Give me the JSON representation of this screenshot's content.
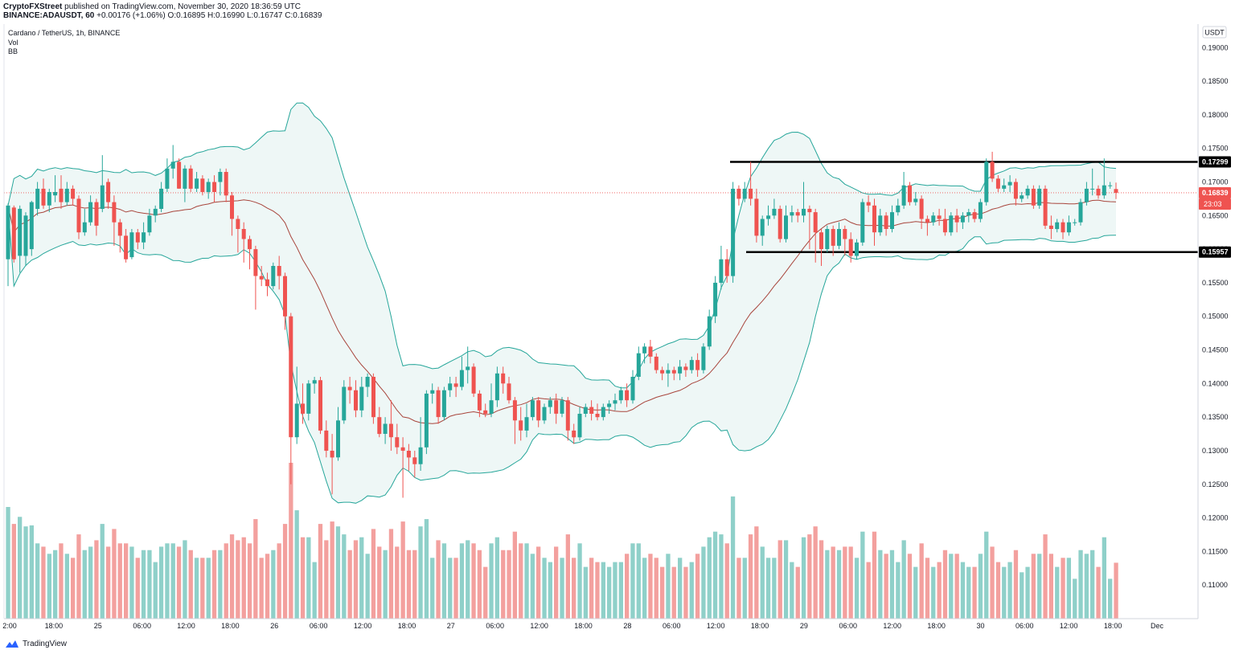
{
  "header": {
    "publisher": "CryptoFXStreet",
    "published_text": "published on TradingView.com, November 30, 2020 18:36:59 UTC",
    "symbol_line": "BINANCE:ADAUSDT, 60",
    "open": "O:0.16895",
    "high": "H:0.16990",
    "low": "L:0.16747",
    "close": "C:0.16839",
    "change": "+0.00176 (+1.06%)"
  },
  "legend": {
    "title": "Cardano / TetherUS, 1h, BINANCE",
    "vol": "Vol",
    "bb": "BB"
  },
  "footer": {
    "brand": "TradingView"
  },
  "colors": {
    "up": "#26a69a",
    "down": "#ef5350",
    "bb_band": "#26a69a",
    "bb_fill": "#eef7f6",
    "basis": "#a8453c",
    "level": "#000000",
    "vol_up": "#8fd0c9",
    "vol_down": "#f3a09e"
  },
  "chart_data": {
    "type": "candlestick",
    "currency": "USDT",
    "ylim": [
      0.105,
      0.1935
    ],
    "y_ticks": [
      "0.19000",
      "0.18500",
      "0.18000",
      "0.17500",
      "0.17000",
      "0.16500",
      "0.16000",
      "0.15500",
      "0.15000",
      "0.14500",
      "0.14000",
      "0.13500",
      "0.13000",
      "0.12500",
      "0.12000",
      "0.11500",
      "0.11000"
    ],
    "x_ticks": [
      "2:00",
      "18:00",
      "25",
      "06:00",
      "12:00",
      "18:00",
      "26",
      "06:00",
      "12:00",
      "18:00",
      "27",
      "06:00",
      "12:00",
      "18:00",
      "28",
      "06:00",
      "12:00",
      "18:00",
      "29",
      "06:00",
      "12:00",
      "18:00",
      "30",
      "06:00",
      "12:00",
      "18:00",
      "Dec"
    ],
    "last_price": "0.16839",
    "countdown": "23:03",
    "levels": [
      {
        "label": "0.17299",
        "value": 0.17299
      },
      {
        "label": "0.15957",
        "value": 0.15957
      }
    ],
    "candles": [
      [
        0.1585,
        0.1665,
        0.1545,
        0.1668
      ],
      [
        0.1662,
        0.1585,
        0.158,
        0.1665
      ],
      [
        0.159,
        0.166,
        0.1565,
        0.1665
      ],
      [
        0.159,
        0.165,
        0.1575,
        0.1655
      ],
      [
        0.16,
        0.167,
        0.159,
        0.1672
      ],
      [
        0.166,
        0.169,
        0.165,
        0.17
      ],
      [
        0.169,
        0.1665,
        0.166,
        0.1705
      ],
      [
        0.1665,
        0.1685,
        0.1655,
        0.169
      ],
      [
        0.168,
        0.1685,
        0.167,
        0.171
      ],
      [
        0.169,
        0.167,
        0.166,
        0.171
      ],
      [
        0.167,
        0.169,
        0.1665,
        0.17
      ],
      [
        0.169,
        0.1675,
        0.1665,
        0.1695
      ],
      [
        0.1675,
        0.1625,
        0.1615,
        0.168
      ],
      [
        0.1625,
        0.164,
        0.162,
        0.166
      ],
      [
        0.164,
        0.167,
        0.1635,
        0.168
      ],
      [
        0.167,
        0.1635,
        0.162,
        0.1675
      ],
      [
        0.166,
        0.1695,
        0.1655,
        0.174
      ],
      [
        0.17,
        0.167,
        0.166,
        0.1705
      ],
      [
        0.167,
        0.164,
        0.1605,
        0.168
      ],
      [
        0.164,
        0.162,
        0.1595,
        0.1645
      ],
      [
        0.162,
        0.1585,
        0.158,
        0.163
      ],
      [
        0.1588,
        0.1625,
        0.1585,
        0.163
      ],
      [
        0.1625,
        0.161,
        0.16,
        0.163
      ],
      [
        0.161,
        0.1625,
        0.16,
        0.164
      ],
      [
        0.1625,
        0.165,
        0.162,
        0.166
      ],
      [
        0.165,
        0.166,
        0.164,
        0.1665
      ],
      [
        0.166,
        0.169,
        0.1655,
        0.17
      ],
      [
        0.169,
        0.172,
        0.1685,
        0.1735
      ],
      [
        0.172,
        0.173,
        0.1705,
        0.1755
      ],
      [
        0.173,
        0.169,
        0.169,
        0.1735
      ],
      [
        0.169,
        0.172,
        0.167,
        0.1725
      ],
      [
        0.172,
        0.169,
        0.1685,
        0.1725
      ],
      [
        0.169,
        0.1705,
        0.1685,
        0.1715
      ],
      [
        0.1705,
        0.1685,
        0.168,
        0.171
      ],
      [
        0.1685,
        0.17,
        0.1675,
        0.1705
      ],
      [
        0.17,
        0.1685,
        0.167,
        0.171
      ],
      [
        0.17,
        0.1715,
        0.168,
        0.172
      ],
      [
        0.1715,
        0.168,
        0.167,
        0.172
      ],
      [
        0.168,
        0.1645,
        0.162,
        0.1685
      ],
      [
        0.1645,
        0.163,
        0.1595,
        0.165
      ],
      [
        0.163,
        0.1615,
        0.158,
        0.164
      ],
      [
        0.1615,
        0.16,
        0.157,
        0.162
      ],
      [
        0.16,
        0.156,
        0.151,
        0.1605
      ],
      [
        0.156,
        0.1555,
        0.1545,
        0.1575
      ],
      [
        0.1555,
        0.1545,
        0.153,
        0.1565
      ],
      [
        0.1545,
        0.1575,
        0.154,
        0.158
      ],
      [
        0.1575,
        0.156,
        0.154,
        0.159
      ],
      [
        0.156,
        0.15,
        0.148,
        0.1565
      ],
      [
        0.15,
        0.132,
        0.125,
        0.1505
      ],
      [
        0.132,
        0.137,
        0.131,
        0.1425
      ],
      [
        0.137,
        0.1355,
        0.134,
        0.14
      ],
      [
        0.1355,
        0.14,
        0.1345,
        0.1405
      ],
      [
        0.14,
        0.1405,
        0.1385,
        0.141
      ],
      [
        0.1405,
        0.133,
        0.1325,
        0.141
      ],
      [
        0.133,
        0.13,
        0.129,
        0.1345
      ],
      [
        0.13,
        0.129,
        0.1235,
        0.1325
      ],
      [
        0.129,
        0.1345,
        0.1285,
        0.1365
      ],
      [
        0.1345,
        0.1395,
        0.134,
        0.1405
      ],
      [
        0.1395,
        0.139,
        0.137,
        0.141
      ],
      [
        0.139,
        0.136,
        0.135,
        0.1405
      ],
      [
        0.136,
        0.1395,
        0.135,
        0.141
      ],
      [
        0.1395,
        0.141,
        0.138,
        0.1415
      ],
      [
        0.141,
        0.135,
        0.134,
        0.1415
      ],
      [
        0.135,
        0.1325,
        0.132,
        0.1365
      ],
      [
        0.1325,
        0.134,
        0.131,
        0.135
      ],
      [
        0.134,
        0.132,
        0.13,
        0.1375
      ],
      [
        0.132,
        0.1305,
        0.1295,
        0.134
      ],
      [
        0.1305,
        0.13,
        0.123,
        0.132
      ],
      [
        0.13,
        0.129,
        0.127,
        0.131
      ],
      [
        0.129,
        0.128,
        0.126,
        0.13
      ],
      [
        0.128,
        0.1305,
        0.127,
        0.135
      ],
      [
        0.1305,
        0.1385,
        0.1295,
        0.139
      ],
      [
        0.1385,
        0.139,
        0.137,
        0.14
      ],
      [
        0.139,
        0.135,
        0.134,
        0.1395
      ],
      [
        0.135,
        0.139,
        0.1345,
        0.1395
      ],
      [
        0.139,
        0.14,
        0.138,
        0.141
      ],
      [
        0.14,
        0.1395,
        0.138,
        0.141
      ],
      [
        0.1395,
        0.142,
        0.139,
        0.144
      ],
      [
        0.142,
        0.1425,
        0.14,
        0.1455
      ],
      [
        0.1425,
        0.1385,
        0.138,
        0.143
      ],
      [
        0.1385,
        0.136,
        0.135,
        0.139
      ],
      [
        0.136,
        0.1355,
        0.135,
        0.137
      ],
      [
        0.1355,
        0.1375,
        0.135,
        0.14
      ],
      [
        0.1375,
        0.1415,
        0.1365,
        0.1425
      ],
      [
        0.1415,
        0.14,
        0.1385,
        0.1425
      ],
      [
        0.14,
        0.1375,
        0.137,
        0.141
      ],
      [
        0.1375,
        0.1345,
        0.131,
        0.138
      ],
      [
        0.1345,
        0.133,
        0.1315,
        0.1365
      ],
      [
        0.133,
        0.135,
        0.132,
        0.137
      ],
      [
        0.135,
        0.1375,
        0.1345,
        0.138
      ],
      [
        0.1375,
        0.1345,
        0.1335,
        0.138
      ],
      [
        0.1345,
        0.1365,
        0.134,
        0.137
      ],
      [
        0.1365,
        0.1375,
        0.1355,
        0.138
      ],
      [
        0.1375,
        0.1355,
        0.134,
        0.1385
      ],
      [
        0.1355,
        0.1375,
        0.135,
        0.138
      ],
      [
        0.1375,
        0.133,
        0.1315,
        0.138
      ],
      [
        0.133,
        0.132,
        0.131,
        0.134
      ],
      [
        0.132,
        0.1355,
        0.1315,
        0.1365
      ],
      [
        0.1355,
        0.1365,
        0.135,
        0.137
      ],
      [
        0.1365,
        0.1355,
        0.1345,
        0.1375
      ],
      [
        0.1355,
        0.135,
        0.1345,
        0.137
      ],
      [
        0.135,
        0.1365,
        0.1345,
        0.137
      ],
      [
        0.1365,
        0.137,
        0.1355,
        0.1375
      ],
      [
        0.137,
        0.1375,
        0.136,
        0.1385
      ],
      [
        0.1375,
        0.139,
        0.137,
        0.1395
      ],
      [
        0.139,
        0.1375,
        0.1365,
        0.14
      ],
      [
        0.1375,
        0.141,
        0.137,
        0.142
      ],
      [
        0.141,
        0.1445,
        0.1405,
        0.1455
      ],
      [
        0.1445,
        0.1455,
        0.143,
        0.146
      ],
      [
        0.1455,
        0.144,
        0.143,
        0.1465
      ],
      [
        0.144,
        0.142,
        0.1415,
        0.1445
      ],
      [
        0.142,
        0.1415,
        0.1405,
        0.1425
      ],
      [
        0.1415,
        0.142,
        0.1395,
        0.143
      ],
      [
        0.142,
        0.1415,
        0.1405,
        0.1425
      ],
      [
        0.1415,
        0.1425,
        0.1405,
        0.1435
      ],
      [
        0.1425,
        0.142,
        0.141,
        0.143
      ],
      [
        0.142,
        0.1435,
        0.1415,
        0.144
      ],
      [
        0.1435,
        0.142,
        0.141,
        0.1445
      ],
      [
        0.142,
        0.1455,
        0.1415,
        0.146
      ],
      [
        0.1455,
        0.15,
        0.145,
        0.151
      ],
      [
        0.15,
        0.155,
        0.149,
        0.156
      ],
      [
        0.155,
        0.1585,
        0.154,
        0.1605
      ],
      [
        0.1585,
        0.156,
        0.155,
        0.16
      ],
      [
        0.156,
        0.169,
        0.155,
        0.17
      ],
      [
        0.169,
        0.1675,
        0.1665,
        0.1695
      ],
      [
        0.1675,
        0.169,
        0.167,
        0.17
      ],
      [
        0.169,
        0.1675,
        0.1665,
        0.173
      ],
      [
        0.1675,
        0.162,
        0.161,
        0.169
      ],
      [
        0.162,
        0.1645,
        0.1605,
        0.165
      ],
      [
        0.1645,
        0.165,
        0.1635,
        0.1665
      ],
      [
        0.165,
        0.166,
        0.1645,
        0.1675
      ],
      [
        0.166,
        0.1615,
        0.161,
        0.1665
      ],
      [
        0.1615,
        0.165,
        0.161,
        0.1665
      ],
      [
        0.165,
        0.1655,
        0.164,
        0.1665
      ],
      [
        0.1655,
        0.165,
        0.164,
        0.166
      ],
      [
        0.165,
        0.166,
        0.164,
        0.17
      ],
      [
        0.166,
        0.1655,
        0.16,
        0.1665
      ],
      [
        0.1655,
        0.1625,
        0.158,
        0.166
      ],
      [
        0.1625,
        0.16,
        0.1575,
        0.163
      ],
      [
        0.16,
        0.163,
        0.1595,
        0.1635
      ],
      [
        0.163,
        0.1605,
        0.159,
        0.1635
      ],
      [
        0.1605,
        0.163,
        0.16,
        0.164
      ],
      [
        0.163,
        0.1615,
        0.159,
        0.1635
      ],
      [
        0.1615,
        0.159,
        0.158,
        0.1625
      ],
      [
        0.159,
        0.161,
        0.1585,
        0.1615
      ],
      [
        0.161,
        0.167,
        0.1605,
        0.1675
      ],
      [
        0.167,
        0.1665,
        0.1655,
        0.168
      ],
      [
        0.1665,
        0.1625,
        0.1605,
        0.1675
      ],
      [
        0.1625,
        0.165,
        0.162,
        0.166
      ],
      [
        0.165,
        0.163,
        0.162,
        0.1655
      ],
      [
        0.163,
        0.1655,
        0.1625,
        0.1665
      ],
      [
        0.1655,
        0.1665,
        0.165,
        0.1675
      ],
      [
        0.1665,
        0.1695,
        0.166,
        0.1715
      ],
      [
        0.1695,
        0.167,
        0.1665,
        0.17
      ],
      [
        0.167,
        0.1675,
        0.1665,
        0.1685
      ],
      [
        0.1675,
        0.1645,
        0.163,
        0.168
      ],
      [
        0.1645,
        0.164,
        0.162,
        0.165
      ],
      [
        0.164,
        0.165,
        0.1635,
        0.1655
      ],
      [
        0.165,
        0.1645,
        0.1635,
        0.166
      ],
      [
        0.1645,
        0.1625,
        0.162,
        0.166
      ],
      [
        0.1625,
        0.165,
        0.162,
        0.1655
      ],
      [
        0.165,
        0.164,
        0.1625,
        0.166
      ],
      [
        0.164,
        0.165,
        0.163,
        0.1655
      ],
      [
        0.165,
        0.1655,
        0.164,
        0.166
      ],
      [
        0.1655,
        0.1645,
        0.164,
        0.166
      ],
      [
        0.1645,
        0.167,
        0.164,
        0.1675
      ],
      [
        0.167,
        0.173,
        0.1665,
        0.1735
      ],
      [
        0.173,
        0.1705,
        0.17,
        0.1745
      ],
      [
        0.1705,
        0.169,
        0.1685,
        0.171
      ],
      [
        0.169,
        0.1695,
        0.1685,
        0.1705
      ],
      [
        0.1695,
        0.17,
        0.1685,
        0.171
      ],
      [
        0.17,
        0.1675,
        0.1665,
        0.1705
      ],
      [
        0.1675,
        0.168,
        0.167,
        0.1685
      ],
      [
        0.168,
        0.169,
        0.1675,
        0.1695
      ],
      [
        0.169,
        0.1665,
        0.166,
        0.1695
      ],
      [
        0.1665,
        0.169,
        0.166,
        0.1695
      ],
      [
        0.169,
        0.1635,
        0.163,
        0.1695
      ],
      [
        0.1635,
        0.163,
        0.1615,
        0.165
      ],
      [
        0.163,
        0.164,
        0.1625,
        0.1645
      ],
      [
        0.164,
        0.1625,
        0.1615,
        0.1645
      ],
      [
        0.1625,
        0.164,
        0.162,
        0.165
      ],
      [
        0.164,
        0.164,
        0.1635,
        0.1645
      ],
      [
        0.164,
        0.167,
        0.1635,
        0.1675
      ],
      [
        0.167,
        0.169,
        0.1665,
        0.17
      ],
      [
        0.169,
        0.169,
        0.168,
        0.172
      ],
      [
        0.169,
        0.168,
        0.1675,
        0.1695
      ],
      [
        0.168,
        0.1695,
        0.1675,
        0.1735
      ],
      [
        0.1695,
        0.1695,
        0.169,
        0.17
      ],
      [
        0.16895,
        0.16839,
        0.16747,
        0.1699
      ]
    ]
  }
}
